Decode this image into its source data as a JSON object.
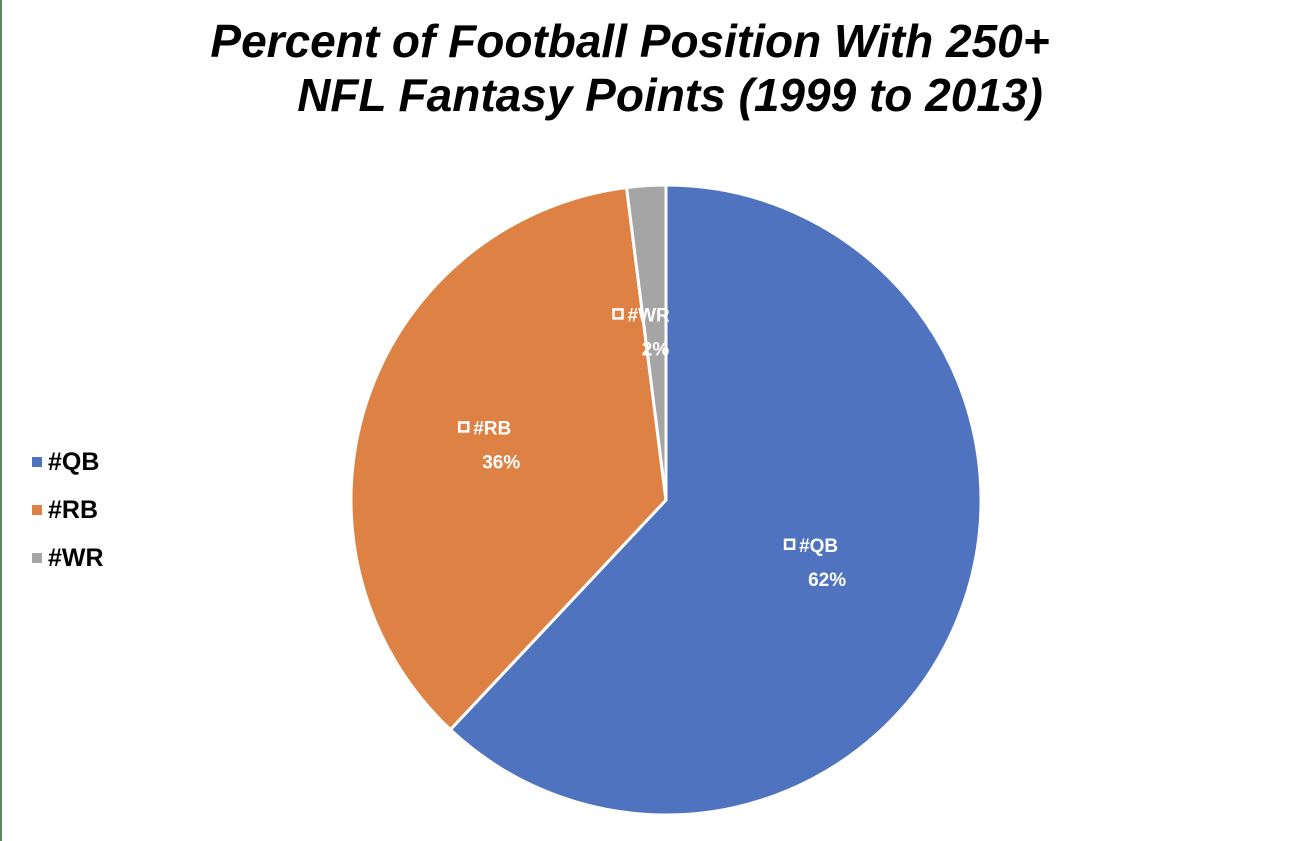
{
  "chart_data": {
    "type": "pie",
    "title": "Percent of Football Position With 250+ NFL Fantasy Points (1999 to 2013)",
    "title_lines": [
      "Percent of Football Position With 250+",
      "NFL Fantasy Points (1999 to 2013)"
    ],
    "categories": [
      "#QB",
      "#RB",
      "#WR"
    ],
    "values": [
      62,
      36,
      2
    ],
    "value_labels": [
      "62%",
      "36%",
      "2%"
    ],
    "colors": [
      "#4f73be",
      "#dd8244",
      "#a5a5a5"
    ],
    "legend": {
      "placement": "left",
      "entries": [
        "#QB",
        "#RB",
        "#WR"
      ]
    },
    "start_angle": "12 o'clock",
    "direction": "clockwise"
  }
}
